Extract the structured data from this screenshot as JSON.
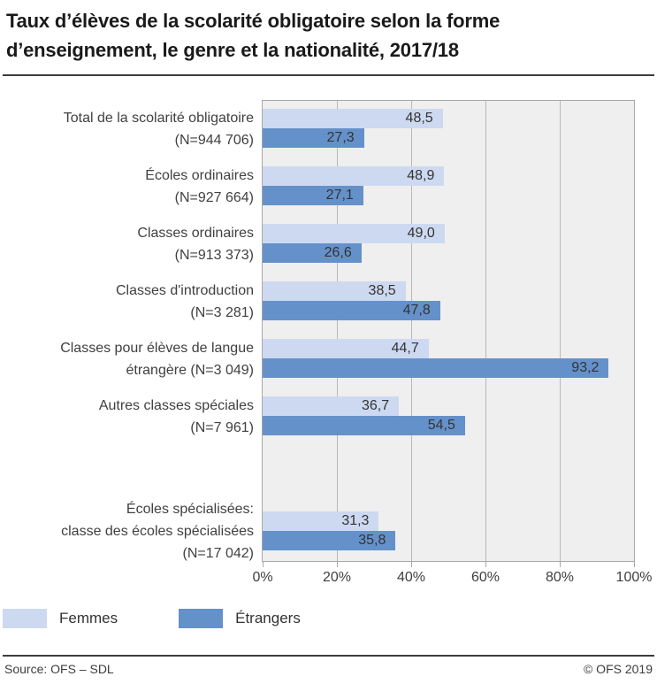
{
  "header": {
    "title_lines": [
      "Taux d’élèves de la scolarité obligatoire selon la forme",
      "d’enseignement, le genre et la nationalité, 2017/18"
    ]
  },
  "chart_data": {
    "type": "bar",
    "orientation": "horizontal",
    "title": "Taux d’élèves de la scolarité obligatoire selon la forme d’enseignement, le genre et la nationalité, 2017/18",
    "xlabel": "",
    "ylabel": "",
    "xlim": [
      0,
      100
    ],
    "grid": "vertical",
    "legend_position": "bottom",
    "plot_background": "#efefef",
    "categories": [
      {
        "lines": [
          "Total de la scolarité obligatoire",
          "(N=944 706)"
        ],
        "slot": 0
      },
      {
        "lines": [
          "Écoles ordinaires",
          "(N=927 664)"
        ],
        "slot": 1
      },
      {
        "lines": [
          "Classes ordinaires",
          "(N=913 373)"
        ],
        "slot": 2
      },
      {
        "lines": [
          "Classes d'introduction",
          "(N=3 281)"
        ],
        "slot": 3
      },
      {
        "lines": [
          "Classes pour élèves de langue",
          "étrangère (N=3 049)"
        ],
        "slot": 4
      },
      {
        "lines": [
          "Autres classes spéciales",
          "(N=7 961)"
        ],
        "slot": 5
      },
      {
        "lines": [
          "Écoles spécialisées:",
          "classe des écoles spécialisées",
          "(N=17 042)"
        ],
        "slot": 7
      }
    ],
    "series": [
      {
        "name": "Femmes",
        "color": "#cdd9f0",
        "values": [
          48.5,
          48.9,
          49.0,
          38.5,
          44.7,
          36.7,
          31.3
        ],
        "labels": [
          "48,5",
          "48,9",
          "49,0",
          "38,5",
          "44,7",
          "36,7",
          "31,3"
        ]
      },
      {
        "name": "Étrangers",
        "color": "#6591ca",
        "values": [
          27.3,
          27.1,
          26.6,
          47.8,
          93.2,
          54.5,
          35.8
        ],
        "labels": [
          "27,3",
          "27,1",
          "26,6",
          "47,8",
          "93,2",
          "54,5",
          "35,8"
        ]
      }
    ],
    "xticks": [
      {
        "value": 0,
        "label": "0%"
      },
      {
        "value": 20,
        "label": "20%"
      },
      {
        "value": 40,
        "label": "40%"
      },
      {
        "value": 60,
        "label": "60%"
      },
      {
        "value": 80,
        "label": "80%"
      },
      {
        "value": 100,
        "label": "100%"
      }
    ]
  },
  "footer": {
    "source": "Source: OFS – SDL",
    "copyright": "© OFS 2019"
  }
}
